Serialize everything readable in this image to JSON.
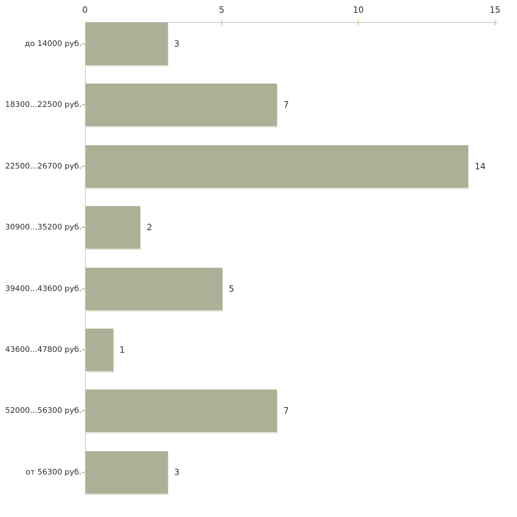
{
  "chart_data": {
    "type": "bar",
    "orientation": "horizontal",
    "categories": [
      "до 14000 руб.",
      "18300...22500 руб.",
      "22500...26700 руб.",
      "30900...35200 руб.",
      "39400...43600 руб.",
      "43600...47800 руб.",
      "52000...56300 руб.",
      "от 56300 руб."
    ],
    "values": [
      3,
      7,
      14,
      2,
      5,
      1,
      7,
      3
    ],
    "value_labels": [
      "3",
      "7",
      "14",
      "2",
      "5",
      "1",
      "7",
      "3"
    ],
    "x_ticks": [
      "0",
      "5",
      "10",
      "15"
    ],
    "x_tick_values": [
      0,
      5,
      10,
      15
    ],
    "xlim": [
      0,
      15
    ],
    "axis_position": "top",
    "grid": false,
    "legend": "none",
    "colors": {
      "bar_fill": "#abb196",
      "bar_edge": "#e1e4d6",
      "axis_line": "#c6c6c6",
      "tick_mark": "#d8d8ad",
      "category_tick": "#cfcfa3",
      "text": "#2e2e2e",
      "background": "#ffffff"
    }
  }
}
